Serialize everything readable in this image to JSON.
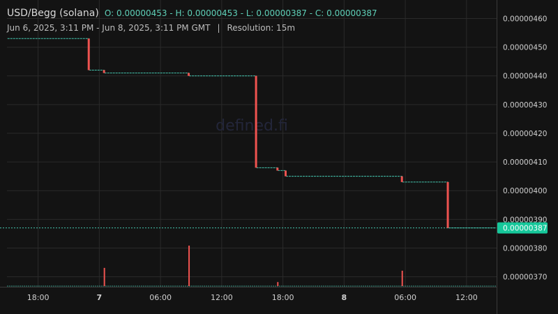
{
  "legend": {
    "pair": "USD/Begg (solana)",
    "ohlc": "O: 0.00000453 - H: 0.00000453 - L: 0.00000387 - C: 0.00000387"
  },
  "subtitle": {
    "range": "Jun 6, 2025, 3:11 PM - Jun 8, 2025, 3:11 PM GMT",
    "separator": "|",
    "resolution": "Resolution: 15m"
  },
  "watermark": "defined.fi",
  "chart_data": {
    "type": "line",
    "subtype": "stepped-price-with-volume",
    "y_tick_labels": [
      "0.00000460",
      "0.00000450",
      "0.00000440",
      "0.00000430",
      "0.00000420",
      "0.00000410",
      "0.00000400",
      "0.00000390",
      "0.00000380",
      "0.00000370"
    ],
    "ylim": [
      3.665e-06,
      4.64e-06
    ],
    "x_tick_labels": [
      "18:00",
      "7",
      "06:00",
      "12:00",
      "18:00",
      "8",
      "06:00",
      "12:00"
    ],
    "x_tick_hours": [
      18,
      24,
      30,
      36,
      42,
      48,
      54,
      60
    ],
    "xlim_hours": [
      14.95,
      62.95
    ],
    "current_price_label": "0.00000387",
    "colors": {
      "up": "#26a69a",
      "down": "#ef5350",
      "level": "#44c7b0",
      "grid": "#2a2a2a",
      "text": "#d0d0d0",
      "badge": "#16c79a"
    },
    "price_steps": [
      {
        "x_start": 15.0,
        "x_end": 23.0,
        "price": 4.53e-06
      },
      {
        "x_start": 23.0,
        "x_end": 24.5,
        "price": 4.42e-06
      },
      {
        "x_start": 24.5,
        "x_end": 32.8,
        "price": 4.41e-06
      },
      {
        "x_start": 32.8,
        "x_end": 39.4,
        "price": 4.4e-06
      },
      {
        "x_start": 39.4,
        "x_end": 41.5,
        "price": 4.08e-06
      },
      {
        "x_start": 41.5,
        "x_end": 42.3,
        "price": 4.07e-06
      },
      {
        "x_start": 42.3,
        "x_end": 53.7,
        "price": 4.05e-06
      },
      {
        "x_start": 53.7,
        "x_end": 58.2,
        "price": 4.03e-06
      },
      {
        "x_start": 58.2,
        "x_end": 62.9,
        "price": 3.87e-06
      }
    ],
    "drops": [
      {
        "x": 23.0,
        "open": 4.53e-06,
        "close": 4.42e-06
      },
      {
        "x": 24.5,
        "open": 4.42e-06,
        "close": 4.41e-06
      },
      {
        "x": 32.8,
        "open": 4.41e-06,
        "close": 4.4e-06
      },
      {
        "x": 39.4,
        "open": 4.4e-06,
        "close": 4.08e-06
      },
      {
        "x": 41.5,
        "open": 4.08e-06,
        "close": 4.07e-06
      },
      {
        "x": 42.3,
        "open": 4.07e-06,
        "close": 4.05e-06
      },
      {
        "x": 53.7,
        "open": 4.05e-06,
        "close": 4.03e-06
      },
      {
        "x": 58.2,
        "open": 4.03e-06,
        "close": 3.87e-06
      }
    ],
    "volume_spikes": [
      {
        "x": 24.5,
        "relative": 0.45
      },
      {
        "x": 32.8,
        "relative": 1.0
      },
      {
        "x": 41.5,
        "relative": 0.1
      },
      {
        "x": 53.7,
        "relative": 0.38
      }
    ]
  }
}
